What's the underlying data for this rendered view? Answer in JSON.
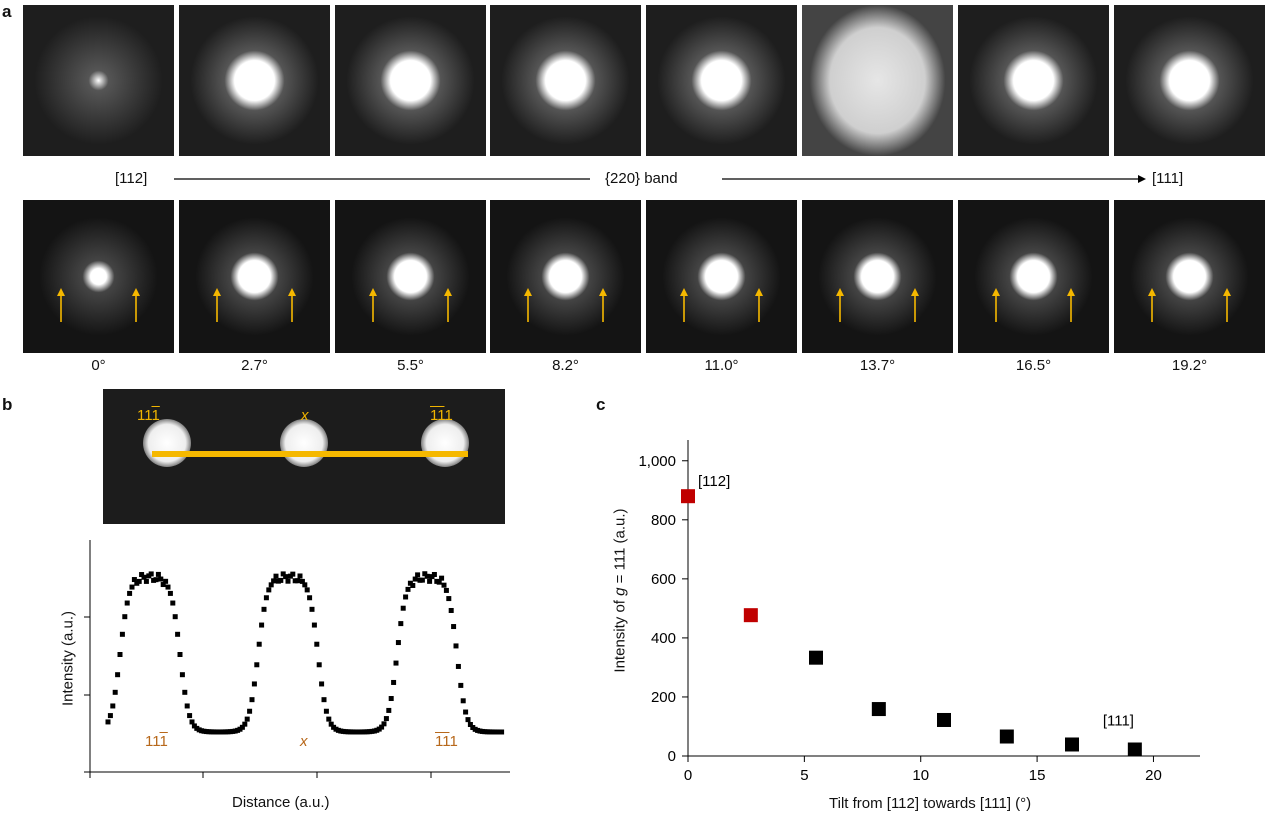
{
  "panels": {
    "a": "a",
    "b": "b",
    "c": "c"
  },
  "panel_a": {
    "zone_start": "[112]",
    "band_label": "{220} band",
    "zone_end": "[111]",
    "tilt_angles": [
      "0°",
      "2.7°",
      "5.5°",
      "8.2°",
      "11.0°",
      "13.7°",
      "16.5°",
      "19.2°"
    ]
  },
  "panel_b": {
    "spot_left": {
      "main": "11",
      "bar": "1"
    },
    "spot_mid": "x",
    "spot_right": {
      "bar": "11",
      "main": "1"
    },
    "profile_left": {
      "main": "11",
      "bar": "1"
    },
    "profile_mid": "x",
    "profile_right": {
      "bar": "11",
      "main": "1"
    },
    "ylabel": "Intensity (a.u.)",
    "xlabel": "Distance (a.u.)",
    "line_color": "#f5b800"
  },
  "chart_data": {
    "type": "scatter",
    "xlabel": "Tilt from [112] towards [111] (°)",
    "ylabel_prefix": "Intensity of ",
    "ylabel_var": "g",
    "ylabel_suffix": " = 111 (a.u.)",
    "xlim": [
      0,
      22
    ],
    "ylim": [
      0,
      1050
    ],
    "xticks": [
      "0",
      "5",
      "10",
      "15",
      "20"
    ],
    "yticks": [
      "0",
      "200",
      "400",
      "600",
      "800",
      "1,000"
    ],
    "points": [
      {
        "x": 0,
        "y": 880,
        "color": "#c00000"
      },
      {
        "x": 2.7,
        "y": 477,
        "color": "#c00000"
      },
      {
        "x": 5.5,
        "y": 333,
        "color": "#000000"
      },
      {
        "x": 8.2,
        "y": 159,
        "color": "#000000"
      },
      {
        "x": 11.0,
        "y": 122,
        "color": "#000000"
      },
      {
        "x": 13.7,
        "y": 66,
        "color": "#000000"
      },
      {
        "x": 16.5,
        "y": 39,
        "color": "#000000"
      },
      {
        "x": 19.2,
        "y": 22,
        "color": "#000000"
      }
    ],
    "annotations": [
      {
        "text": "[112]",
        "x": 0,
        "y": 880
      },
      {
        "text": "[111]",
        "x": 19.2,
        "y": 22
      }
    ]
  }
}
